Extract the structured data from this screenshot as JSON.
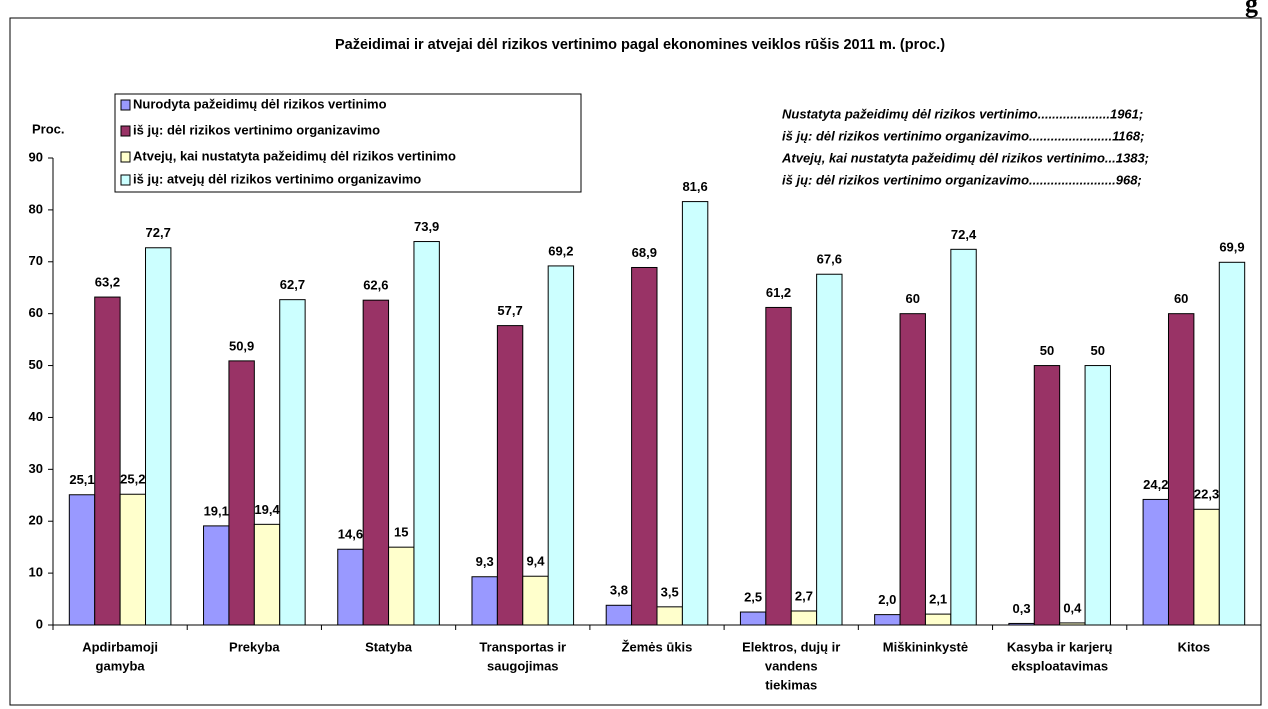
{
  "header_fragment": "g",
  "chart_data": {
    "type": "bar",
    "title": "Pažeidimai ir atvejai dėl rizikos vertinimo pagal ekonomines veiklos rūšis 2011 m. (proc.)",
    "y_label": "Proc.",
    "annotations": [
      "Nustatyta pažeidimų dėl rizikos vertinimo....................1961;",
      "iš jų: dėl rizikos vertinimo organizavimo.......................1168;",
      "Atvejų, kai nustatyta pažeidimų dėl rizikos vertinimo...1383;",
      "iš jų: dėl rizikos vertinimo organizavimo........................968;"
    ],
    "categories": [
      [
        "Apdirbamoji",
        "gamyba"
      ],
      [
        "Prekyba"
      ],
      [
        "Statyba"
      ],
      [
        "Transportas ir",
        "saugojimas"
      ],
      [
        "Žemės ūkis"
      ],
      [
        "Elektros, dujų ir",
        "vandens",
        "tiekimas"
      ],
      [
        "Miškininkystė"
      ],
      [
        "Kasyba ir karjerų",
        "eksploatavimas"
      ],
      [
        "Kitos"
      ]
    ],
    "series": [
      {
        "name": "Nurodyta pažeidimų dėl rizikos vertinimo",
        "color": "#9999ff",
        "values": [
          25.1,
          19.1,
          14.6,
          9.3,
          3.8,
          2.5,
          2.0,
          0.3,
          24.2
        ],
        "value_labels": [
          "25,1",
          "19,1",
          "14,6",
          "9,3",
          "3,8",
          "2,5",
          "2,0",
          "0,3",
          "24,2"
        ]
      },
      {
        "name": "iš jų:  dėl rizikos vertinimo organizavimo",
        "color": "#993366",
        "values": [
          63.2,
          50.9,
          62.6,
          57.7,
          68.9,
          61.2,
          60,
          50,
          60
        ],
        "value_labels": [
          "63,2",
          "50,9",
          "62,6",
          "57,7",
          "68,9",
          "61,2",
          "60",
          "50",
          "60"
        ]
      },
      {
        "name": "Atvejų, kai nustatyta pažeidimų dėl rizikos vertinimo",
        "color": "#ffffcc",
        "values": [
          25.2,
          19.4,
          15,
          9.4,
          3.5,
          2.7,
          2.1,
          0.4,
          22.3
        ],
        "value_labels": [
          "25,2",
          "19,4",
          "15",
          "9,4",
          "3,5",
          "2,7",
          "2,1",
          "0,4",
          "22,3"
        ]
      },
      {
        "name": "iš jų: atvejų dėl rizikos vertinimo organizavimo",
        "color": "#ccffff",
        "values": [
          72.7,
          62.7,
          73.9,
          69.2,
          81.6,
          67.6,
          72.4,
          50,
          69.9
        ],
        "value_labels": [
          "72,7",
          "62,7",
          "73,9",
          "69,2",
          "81,6",
          "67,6",
          "72,4",
          "50",
          "69,9"
        ]
      }
    ],
    "ylim": [
      0,
      90
    ],
    "yticks": [
      0,
      10,
      20,
      30,
      40,
      50,
      60,
      70,
      80,
      90
    ],
    "grid": false,
    "legend": "top-left"
  }
}
